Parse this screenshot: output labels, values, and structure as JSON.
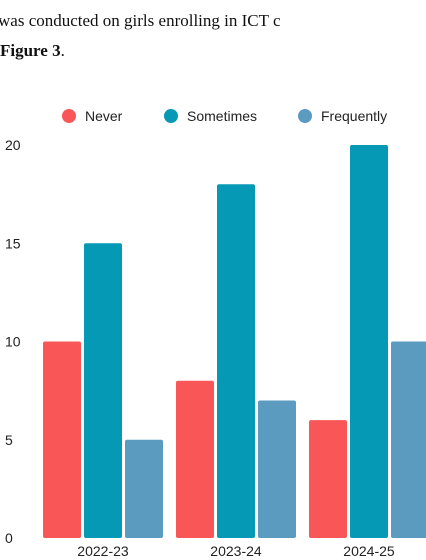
{
  "document": {
    "line1": "was conducted on girls enrolling in ICT c",
    "line2_bold": "Figure 3",
    "line2_tail": "."
  },
  "chart_data": {
    "type": "bar",
    "categories": [
      "2022-23",
      "2023-24",
      "2024-25"
    ],
    "series": [
      {
        "name": "Never",
        "values": [
          10,
          8,
          6
        ],
        "color": "#f95757"
      },
      {
        "name": "Sometimes",
        "values": [
          15,
          18,
          20
        ],
        "color": "#0699b6"
      },
      {
        "name": "Frequently",
        "values": [
          5,
          7,
          10
        ],
        "color": "#5b9bbf"
      }
    ],
    "ylim": [
      0,
      20
    ],
    "yticks": [
      0,
      5,
      10,
      15,
      20
    ],
    "grid": false,
    "legend": "top",
    "title": "",
    "xlabel": "",
    "ylabel": ""
  }
}
